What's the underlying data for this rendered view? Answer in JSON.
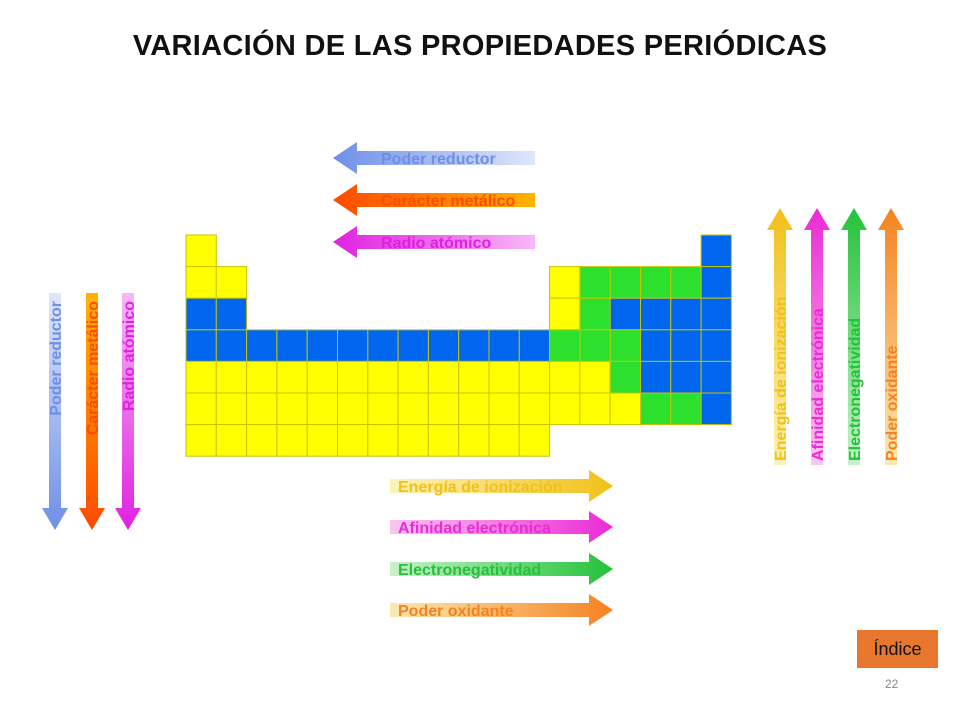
{
  "slide": {
    "title": "VARIACIÓN DE LAS PROPIEDADES PERIÓDICAS",
    "index_button": "Índice",
    "page_number": "22"
  },
  "colors": {
    "yellow": "#ffff00",
    "green": "#2ee02e",
    "blue": "#0066ee",
    "grid_line": "#c9c400"
  },
  "arrows_left": [
    {
      "label": "Poder reductor",
      "color": "#6f8fe6",
      "light": "#dfe7fb"
    },
    {
      "label": "Carácter metálico",
      "color": "#ff4a00",
      "light": "#ffb300"
    },
    {
      "label": "Radio atómico",
      "color": "#e020e0",
      "light": "#f7b8f7"
    }
  ],
  "arrows_down": [
    {
      "label": "Poder reductor",
      "color": "#6f8fe6",
      "light": "#dfe7fb"
    },
    {
      "label": "Carácter metálico",
      "color": "#ff4a00",
      "light": "#ffb300"
    },
    {
      "label": "Radio atómico",
      "color": "#e020e0",
      "light": "#f7b8f7"
    }
  ],
  "arrows_right": [
    {
      "label": "Energía de ionización",
      "color": "#f2c018",
      "light": "#fbf3b8"
    },
    {
      "label": "Afinidad electrónica",
      "color": "#ec2ad6",
      "light": "#f9c6f1"
    },
    {
      "label": "Electronegatividad",
      "color": "#23c23a",
      "light": "#c6f2c8"
    },
    {
      "label": "Poder oxidante",
      "color": "#f58220",
      "light": "#fbe9b0"
    }
  ],
  "arrows_up": [
    {
      "label": "Energía de ionización",
      "color": "#f2c018",
      "light": "#fbf3b8"
    },
    {
      "label": "Afinidad electrónica",
      "color": "#ec2ad6",
      "light": "#f9c6f1"
    },
    {
      "label": "Electronegatividad",
      "color": "#23c23a",
      "light": "#c6f2c8"
    },
    {
      "label": "Poder oxidante",
      "color": "#f58220",
      "light": "#fbe9b0"
    }
  ]
}
